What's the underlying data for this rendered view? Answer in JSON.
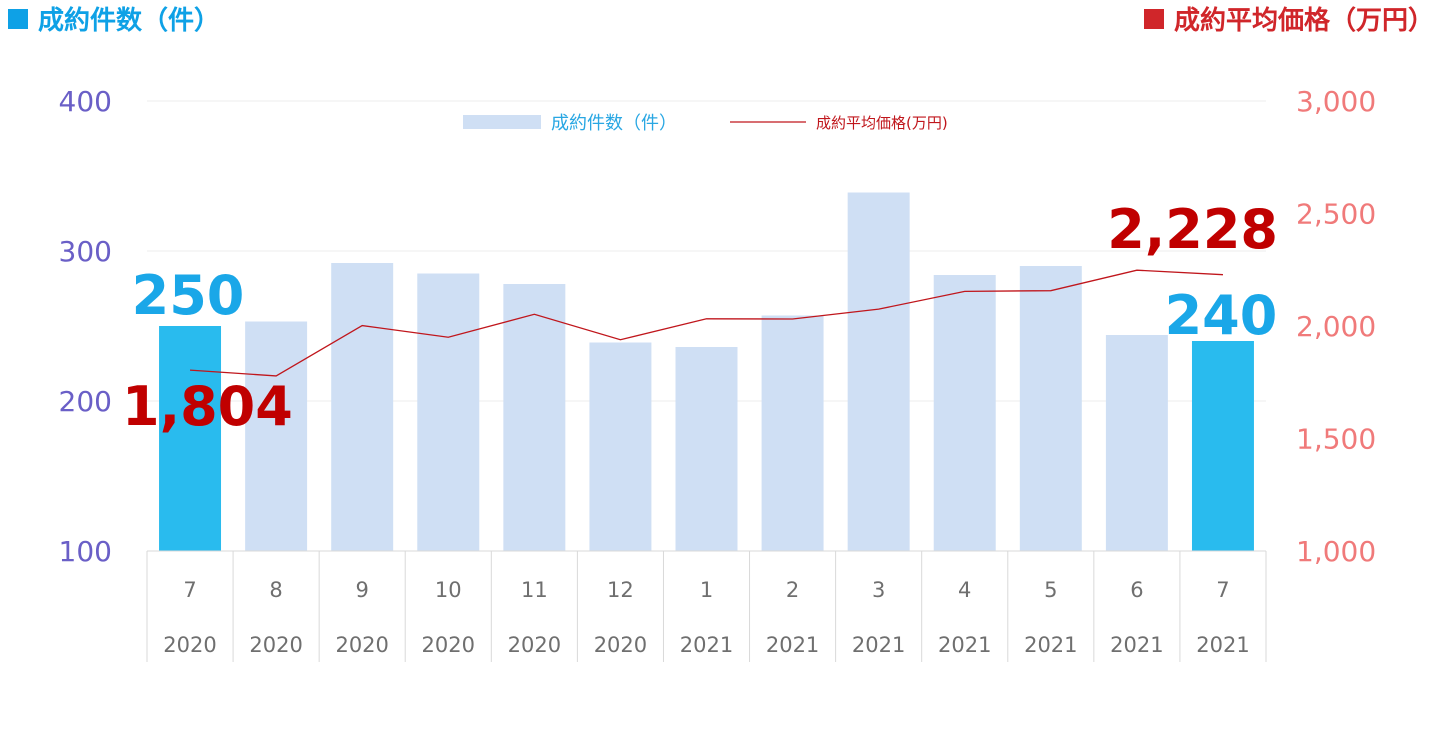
{
  "header": {
    "left_title": "成約件数（件）",
    "right_title": "成約平均価格（万円）",
    "left_color": "#0ea1e6",
    "right_color": "#d0262a"
  },
  "colors": {
    "bar_normal": "#cfdff4",
    "bar_highlight": "#29bbee",
    "line": "#c0161c",
    "left_axis": "#6a5fc7",
    "right_axis": "#f07a7a",
    "category_text": "#6f6f6f",
    "grid": "#ececec",
    "highlight_label_blue": "#1aa7e8",
    "highlight_label_red": "#c00000"
  },
  "chart_data": {
    "type": "bar",
    "categories": [
      {
        "month": "7",
        "year": "2020"
      },
      {
        "month": "8",
        "year": "2020"
      },
      {
        "month": "9",
        "year": "2020"
      },
      {
        "month": "10",
        "year": "2020"
      },
      {
        "month": "11",
        "year": "2020"
      },
      {
        "month": "12",
        "year": "2020"
      },
      {
        "month": "1",
        "year": "2021"
      },
      {
        "month": "2",
        "year": "2021"
      },
      {
        "month": "3",
        "year": "2021"
      },
      {
        "month": "4",
        "year": "2021"
      },
      {
        "month": "5",
        "year": "2021"
      },
      {
        "month": "6",
        "year": "2021"
      },
      {
        "month": "7",
        "year": "2021"
      }
    ],
    "series": [
      {
        "name": "成約件数（件）",
        "type": "bar",
        "axis": "left",
        "values": [
          250,
          253,
          292,
          285,
          278,
          239,
          236,
          257,
          339,
          284,
          290,
          244,
          240
        ],
        "highlight_indices": [
          0,
          12
        ]
      },
      {
        "name": "成約平均価格(万円)",
        "type": "line",
        "axis": "right",
        "values": [
          1804,
          1778,
          2002,
          1950,
          2052,
          1939,
          2032,
          2031,
          2075,
          2154,
          2157,
          2248,
          2228
        ]
      }
    ],
    "left_axis": {
      "min": 100,
      "max": 400,
      "ticks": [
        "100",
        "200",
        "300",
        "400"
      ]
    },
    "right_axis": {
      "min": 1000,
      "max": 3000,
      "ticks": [
        "1,000",
        "1,500",
        "2,000",
        "2,500",
        "3,000"
      ]
    },
    "grid": true,
    "legend": "top-center",
    "annotations": [
      {
        "text": "250",
        "series": 0,
        "index": 0
      },
      {
        "text": "240",
        "series": 0,
        "index": 12
      },
      {
        "text": "1,804",
        "series": 1,
        "index": 0
      },
      {
        "text": "2,228",
        "series": 1,
        "index": 12
      }
    ]
  }
}
